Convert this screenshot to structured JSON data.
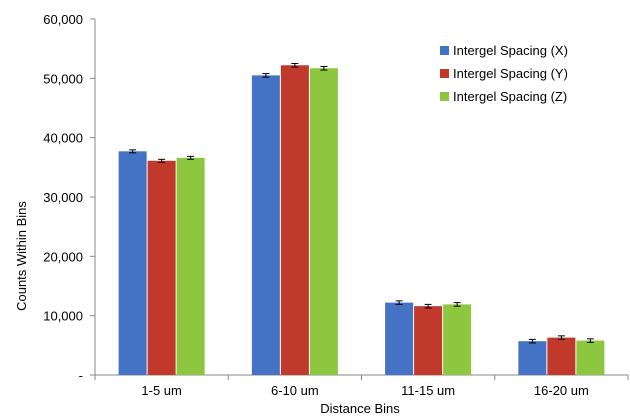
{
  "chart_data": {
    "type": "bar",
    "title": "",
    "xlabel": "Distance Bins",
    "ylabel": "Counts Within Bins",
    "categories": [
      "1-5 um",
      "6-10 um",
      "11-15 um",
      "16-20 um"
    ],
    "ylim": [
      0,
      60000
    ],
    "yticks": [
      0,
      10000,
      20000,
      30000,
      40000,
      50000,
      60000
    ],
    "ytick_labels": [
      "-",
      "10,000",
      "20,000",
      "30,000",
      "40,000",
      "50,000",
      "60,000"
    ],
    "grid": false,
    "legend_position": "top-right",
    "series": [
      {
        "name": "Intergel Spacing (X)",
        "color": "#4472C4",
        "values": [
          37700,
          50500,
          12200,
          5700
        ],
        "errors": [
          250,
          300,
          300,
          300
        ]
      },
      {
        "name": "Intergel Spacing (Y)",
        "color": "#C0392B",
        "values": [
          36100,
          52200,
          11600,
          6300
        ],
        "errors": [
          250,
          300,
          300,
          300
        ]
      },
      {
        "name": "Intergel Spacing (Z)",
        "color": "#8DC63F",
        "values": [
          36600,
          51700,
          11900,
          5800
        ],
        "errors": [
          250,
          300,
          300,
          300
        ]
      }
    ]
  }
}
